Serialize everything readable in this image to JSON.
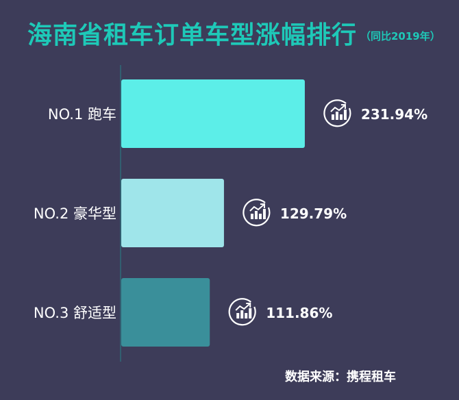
{
  "chart_data": {
    "type": "bar",
    "orientation": "horizontal",
    "title": "海南省租车订单车型涨幅排行",
    "subtitle": "（同比2019年）",
    "categories": [
      "NO.1  跑车",
      "NO.2  豪华型",
      "NO.3  舒适型"
    ],
    "values": [
      231.94,
      129.79,
      111.86
    ],
    "value_labels": [
      "231.94%",
      "129.79%",
      "111.86%"
    ],
    "colors": [
      "#5ceee8",
      "#9fe5ea",
      "#3a8f9a"
    ],
    "xlim": [
      0,
      232
    ],
    "grid": false,
    "label_icon": "growth-chart-icon",
    "source": "数据来源：携程租车"
  },
  "colors": {
    "background": "#3d3c59",
    "title": "#1ec9b8"
  }
}
